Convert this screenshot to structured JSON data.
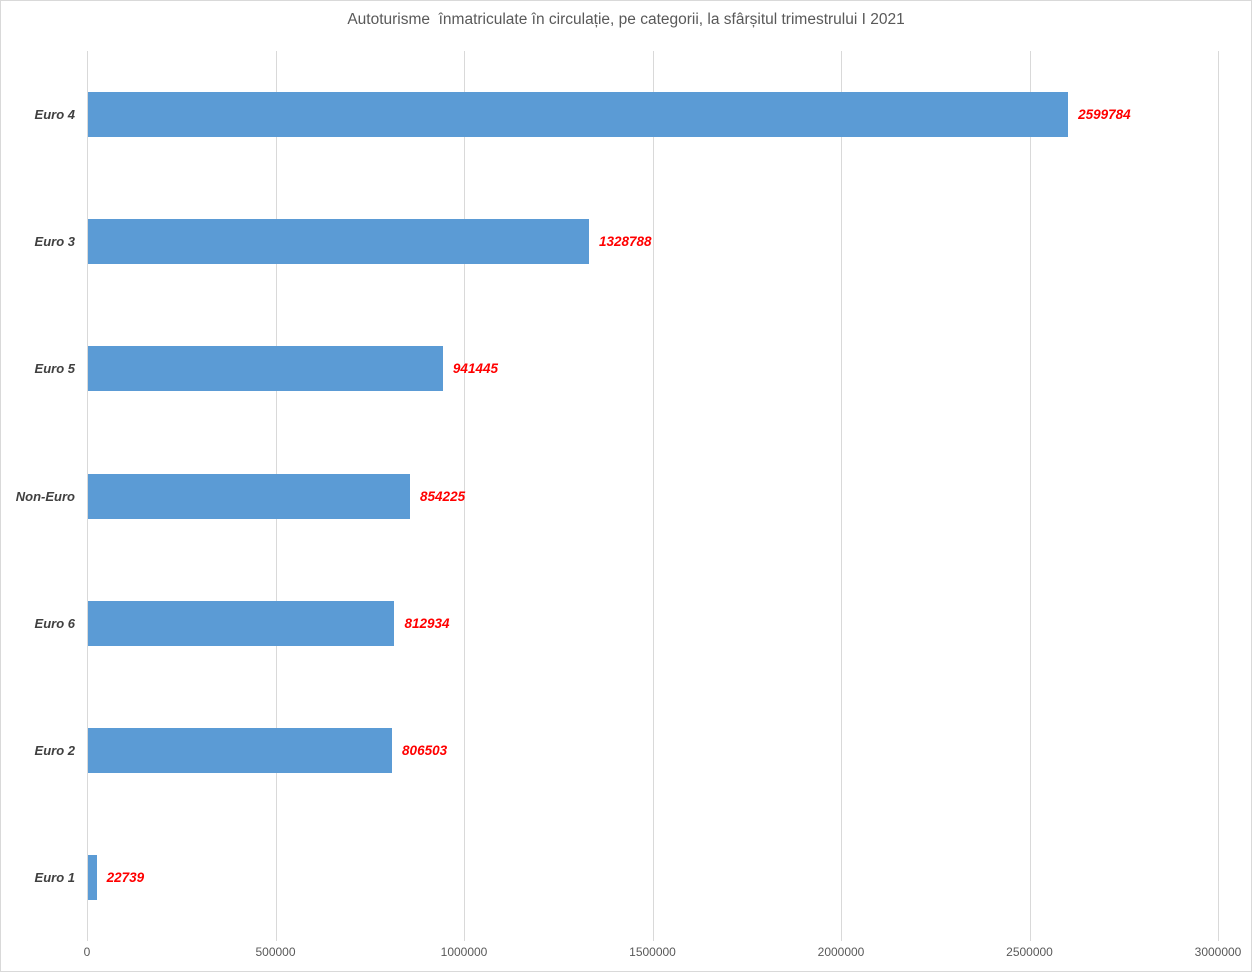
{
  "chart_data": {
    "type": "bar",
    "orientation": "horizontal",
    "title": "Autoturisme  înmatriculate în circulație, pe categorii, la sfârșitul trimestrului I 2021",
    "categories": [
      "Euro 4",
      "Euro 3",
      "Euro 5",
      "Non-Euro",
      "Euro 6",
      "Euro 2",
      "Euro 1"
    ],
    "values": [
      2599784,
      1328788,
      941445,
      854225,
      812934,
      806503,
      22739
    ],
    "data_labels": [
      "2599784",
      "1328788",
      "941445",
      "854225",
      "812934",
      "806503",
      "22739"
    ],
    "x_ticks": [
      0,
      500000,
      1000000,
      1500000,
      2000000,
      2500000,
      3000000
    ],
    "x_tick_labels": [
      "0",
      "500000",
      "1000000",
      "1500000",
      "2000000",
      "2500000",
      "3000000"
    ],
    "xlim": [
      0,
      3000000
    ],
    "xlabel": "",
    "ylabel": "",
    "grid": "vertical-only",
    "legend": "none",
    "colors": {
      "bar": "#5b9bd5",
      "value_label": "#ff0000",
      "category_label": "#404040",
      "tick_label": "#595959",
      "gridline": "#d9d9d9",
      "title": "#595959",
      "background": "#ffffff",
      "border": "#d9d9d9"
    }
  }
}
